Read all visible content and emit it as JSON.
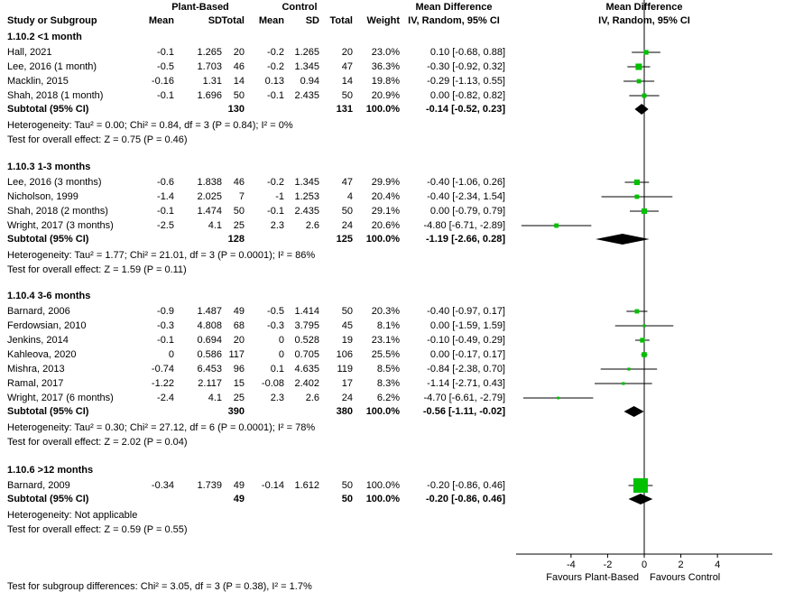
{
  "chart_data": {
    "type": "forest",
    "header": {
      "groups": [
        "Plant-Based",
        "Control",
        "Mean Difference",
        "Mean Difference"
      ],
      "columns": [
        "Study or Subgroup",
        "Mean",
        "SD",
        "Total",
        "Mean",
        "SD",
        "Total",
        "Weight",
        "IV, Random, 95% CI",
        "IV, Random, 95% CI"
      ]
    },
    "subgroups": [
      {
        "title": "1.10.2 <1 month",
        "rows": [
          {
            "cells": [
              "Hall, 2021",
              "-0.1",
              "1.265",
              "20",
              "-0.2",
              "1.265",
              "20",
              "23.0%",
              "0.10 [-0.68, 0.88]"
            ],
            "md": 0.1,
            "lo": -0.68,
            "hi": 0.88,
            "weight": 23.0
          },
          {
            "cells": [
              "Lee, 2016 (1 month)",
              "-0.5",
              "1.703",
              "46",
              "-0.2",
              "1.345",
              "47",
              "36.3%",
              "-0.30 [-0.92, 0.32]"
            ],
            "md": -0.3,
            "lo": -0.92,
            "hi": 0.32,
            "weight": 36.3
          },
          {
            "cells": [
              "Macklin, 2015",
              "-0.16",
              "1.31",
              "14",
              "0.13",
              "0.94",
              "14",
              "19.8%",
              "-0.29 [-1.13, 0.55]"
            ],
            "md": -0.29,
            "lo": -1.13,
            "hi": 0.55,
            "weight": 19.8
          },
          {
            "cells": [
              "Shah, 2018 (1 month)",
              "-0.1",
              "1.696",
              "50",
              "-0.1",
              "2.435",
              "50",
              "20.9%",
              "0.00 [-0.82, 0.82]"
            ],
            "md": 0.0,
            "lo": -0.82,
            "hi": 0.82,
            "weight": 20.9
          }
        ],
        "subtotal": {
          "cells": [
            "Subtotal (95% CI)",
            "130",
            "131",
            "100.0%",
            "-0.14 [-0.52, 0.23]"
          ],
          "md": -0.14,
          "lo": -0.52,
          "hi": 0.23
        },
        "heterogeneity": "Heterogeneity: Tau² = 0.00; Chi² = 0.84, df = 3 (P = 0.84); I² = 0%",
        "overall": "Test for overall effect: Z = 0.75 (P = 0.46)"
      },
      {
        "title": "1.10.3 1-3 months",
        "rows": [
          {
            "cells": [
              "Lee, 2016 (3 months)",
              "-0.6",
              "1.838",
              "46",
              "-0.2",
              "1.345",
              "47",
              "29.9%",
              "-0.40 [-1.06, 0.26]"
            ],
            "md": -0.4,
            "lo": -1.06,
            "hi": 0.26,
            "weight": 29.9
          },
          {
            "cells": [
              "Nicholson, 1999",
              "-1.4",
              "2.025",
              "7",
              "-1",
              "1.253",
              "4",
              "20.4%",
              "-0.40 [-2.34, 1.54]"
            ],
            "md": -0.4,
            "lo": -2.34,
            "hi": 1.54,
            "weight": 20.4
          },
          {
            "cells": [
              "Shah, 2018 (2 months)",
              "-0.1",
              "1.474",
              "50",
              "-0.1",
              "2.435",
              "50",
              "29.1%",
              "0.00 [-0.79, 0.79]"
            ],
            "md": 0.0,
            "lo": -0.79,
            "hi": 0.79,
            "weight": 29.1
          },
          {
            "cells": [
              "Wright, 2017 (3 months)",
              "-2.5",
              "4.1",
              "25",
              "2.3",
              "2.6",
              "24",
              "20.6%",
              "-4.80 [-6.71, -2.89]"
            ],
            "md": -4.8,
            "lo": -6.71,
            "hi": -2.89,
            "weight": 20.6
          }
        ],
        "subtotal": {
          "cells": [
            "Subtotal (95% CI)",
            "128",
            "125",
            "100.0%",
            "-1.19 [-2.66, 0.28]"
          ],
          "md": -1.19,
          "lo": -2.66,
          "hi": 0.28
        },
        "heterogeneity": "Heterogeneity: Tau² = 1.77; Chi² = 21.01, df = 3 (P = 0.0001); I² = 86%",
        "overall": "Test for overall effect: Z = 1.59 (P = 0.11)"
      },
      {
        "title": "1.10.4 3-6 months",
        "rows": [
          {
            "cells": [
              "Barnard, 2006",
              "-0.9",
              "1.487",
              "49",
              "-0.5",
              "1.414",
              "50",
              "20.3%",
              "-0.40 [-0.97, 0.17]"
            ],
            "md": -0.4,
            "lo": -0.97,
            "hi": 0.17,
            "weight": 20.3
          },
          {
            "cells": [
              "Ferdowsian, 2010",
              "-0.3",
              "4.808",
              "68",
              "-0.3",
              "3.795",
              "45",
              "8.1%",
              "0.00 [-1.59, 1.59]"
            ],
            "md": 0.0,
            "lo": -1.59,
            "hi": 1.59,
            "weight": 8.1
          },
          {
            "cells": [
              "Jenkins, 2014",
              "-0.1",
              "0.694",
              "20",
              "0",
              "0.528",
              "19",
              "23.1%",
              "-0.10 [-0.49, 0.29]"
            ],
            "md": -0.1,
            "lo": -0.49,
            "hi": 0.29,
            "weight": 23.1
          },
          {
            "cells": [
              "Kahleova, 2020",
              "0",
              "0.586",
              "117",
              "0",
              "0.705",
              "106",
              "25.5%",
              "0.00 [-0.17, 0.17]"
            ],
            "md": 0.0,
            "lo": -0.17,
            "hi": 0.17,
            "weight": 25.5
          },
          {
            "cells": [
              "Mishra, 2013",
              "-0.74",
              "6.453",
              "96",
              "0.1",
              "4.635",
              "119",
              "8.5%",
              "-0.84 [-2.38, 0.70]"
            ],
            "md": -0.84,
            "lo": -2.38,
            "hi": 0.7,
            "weight": 8.5
          },
          {
            "cells": [
              "Ramal, 2017",
              "-1.22",
              "2.117",
              "15",
              "-0.08",
              "2.402",
              "17",
              "8.3%",
              "-1.14 [-2.71, 0.43]"
            ],
            "md": -1.14,
            "lo": -2.71,
            "hi": 0.43,
            "weight": 8.3
          },
          {
            "cells": [
              "Wright, 2017 (6 months)",
              "-2.4",
              "4.1",
              "25",
              "2.3",
              "2.6",
              "24",
              "6.2%",
              "-4.70 [-6.61, -2.79]"
            ],
            "md": -4.7,
            "lo": -6.61,
            "hi": -2.79,
            "weight": 6.2
          }
        ],
        "subtotal": {
          "cells": [
            "Subtotal (95% CI)",
            "390",
            "380",
            "100.0%",
            "-0.56 [-1.11, -0.02]"
          ],
          "md": -0.56,
          "lo": -1.11,
          "hi": -0.02
        },
        "heterogeneity": "Heterogeneity: Tau² = 0.30; Chi² = 27.12, df = 6 (P = 0.0001); I² = 78%",
        "overall": "Test for overall effect: Z = 2.02 (P = 0.04)"
      },
      {
        "title": "1.10.6 >12 months",
        "rows": [
          {
            "cells": [
              "Barnard, 2009",
              "-0.34",
              "1.739",
              "49",
              "-0.14",
              "1.612",
              "50",
              "100.0%",
              "-0.20 [-0.86, 0.46]"
            ],
            "md": -0.2,
            "lo": -0.86,
            "hi": 0.46,
            "weight": 100.0
          }
        ],
        "subtotal": {
          "cells": [
            "Subtotal (95% CI)",
            "49",
            "50",
            "100.0%",
            "-0.20 [-0.86, 0.46]"
          ],
          "md": -0.2,
          "lo": -0.86,
          "hi": 0.46
        },
        "heterogeneity": "Heterogeneity: Not applicable",
        "overall": "Test for overall effect: Z = 0.59 (P = 0.55)"
      }
    ],
    "xlim": [
      -7,
      7
    ],
    "xticks": [
      -4,
      -2,
      0,
      2,
      4
    ],
    "favours": [
      "Favours Plant-Based",
      "Favours Control"
    ],
    "box_color": "#00c000",
    "footer": "Test for subgroup differences: Chi² = 3.05, df = 3 (P = 0.38), I² = 1.7%"
  }
}
